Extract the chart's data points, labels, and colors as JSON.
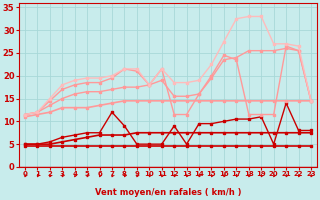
{
  "title": "",
  "xlabel": "Vent moyen/en rafales ( km/h )",
  "ylabel": "",
  "bg_color": "#c8ecec",
  "grid_color": "#a8d8d8",
  "text_color": "#cc0000",
  "xlim": [
    -0.5,
    23.5
  ],
  "ylim": [
    0,
    36
  ],
  "yticks": [
    0,
    5,
    10,
    15,
    20,
    25,
    30,
    35
  ],
  "xticks": [
    0,
    1,
    2,
    3,
    4,
    5,
    6,
    7,
    8,
    9,
    10,
    11,
    12,
    13,
    14,
    15,
    16,
    17,
    18,
    19,
    20,
    21,
    22,
    23
  ],
  "series": [
    {
      "x": [
        0,
        1,
        2,
        3,
        4,
        5,
        6,
        7,
        8,
        9,
        10,
        11,
        12,
        13,
        14,
        15,
        16,
        17,
        18,
        19,
        20,
        21,
        22,
        23
      ],
      "y": [
        4.5,
        4.5,
        4.5,
        4.5,
        4.5,
        4.5,
        4.5,
        4.5,
        4.5,
        4.5,
        4.5,
        4.5,
        4.5,
        4.5,
        4.5,
        4.5,
        4.5,
        4.5,
        4.5,
        4.5,
        4.5,
        4.5,
        4.5,
        4.5
      ],
      "color": "#cc0000",
      "lw": 1.2,
      "marker": "s",
      "ms": 2.0
    },
    {
      "x": [
        0,
        1,
        2,
        3,
        4,
        5,
        6,
        7,
        8,
        9,
        10,
        11,
        12,
        13,
        14,
        15,
        16,
        17,
        18,
        19,
        20,
        21,
        22,
        23
      ],
      "y": [
        5.0,
        5.0,
        5.0,
        5.5,
        6.0,
        6.5,
        7.0,
        7.0,
        7.0,
        7.5,
        7.5,
        7.5,
        7.5,
        7.5,
        7.5,
        7.5,
        7.5,
        7.5,
        7.5,
        7.5,
        7.5,
        7.5,
        7.5,
        7.5
      ],
      "color": "#cc0000",
      "lw": 1.2,
      "marker": "s",
      "ms": 2.0
    },
    {
      "x": [
        0,
        1,
        2,
        3,
        4,
        5,
        6,
        7,
        8,
        9,
        10,
        11,
        12,
        13,
        14,
        15,
        16,
        17,
        18,
        19,
        20,
        21,
        22,
        23
      ],
      "y": [
        5.0,
        5.0,
        5.5,
        6.5,
        7.0,
        7.5,
        7.5,
        12.0,
        9.0,
        5.0,
        5.0,
        5.0,
        9.0,
        5.0,
        9.5,
        9.5,
        10.0,
        10.5,
        10.5,
        11.0,
        5.0,
        14.0,
        8.0,
        8.0
      ],
      "color": "#cc0000",
      "lw": 1.0,
      "marker": "s",
      "ms": 2.0
    },
    {
      "x": [
        0,
        1,
        2,
        3,
        4,
        5,
        6,
        7,
        8,
        9,
        10,
        11,
        12,
        13,
        14,
        15,
        16,
        17,
        18,
        19,
        20,
        21,
        22,
        23
      ],
      "y": [
        11.0,
        11.5,
        12.0,
        13.0,
        13.0,
        13.0,
        13.5,
        14.0,
        14.5,
        14.5,
        14.5,
        14.5,
        14.5,
        14.5,
        14.5,
        14.5,
        14.5,
        14.5,
        14.5,
        14.5,
        14.5,
        14.5,
        14.5,
        14.5
      ],
      "color": "#ff9999",
      "lw": 1.2,
      "marker": "s",
      "ms": 2.0
    },
    {
      "x": [
        0,
        1,
        2,
        3,
        4,
        5,
        6,
        7,
        8,
        9,
        10,
        11,
        12,
        13,
        14,
        15,
        16,
        17,
        18,
        19,
        20,
        21,
        22,
        23
      ],
      "y": [
        11.5,
        12.0,
        13.5,
        15.0,
        16.0,
        16.5,
        16.5,
        17.0,
        17.5,
        17.5,
        18.0,
        19.0,
        15.5,
        15.5,
        16.0,
        19.5,
        23.5,
        24.0,
        25.5,
        25.5,
        25.5,
        26.0,
        25.5,
        14.5
      ],
      "color": "#ff9999",
      "lw": 1.0,
      "marker": "s",
      "ms": 2.0
    },
    {
      "x": [
        0,
        1,
        2,
        3,
        4,
        5,
        6,
        7,
        8,
        9,
        10,
        11,
        12,
        13,
        14,
        15,
        16,
        17,
        18,
        19,
        20,
        21,
        22,
        23
      ],
      "y": [
        11.5,
        12.0,
        14.5,
        17.0,
        18.0,
        18.5,
        18.5,
        19.5,
        21.5,
        21.0,
        18.0,
        21.5,
        11.5,
        11.5,
        16.0,
        20.0,
        24.5,
        23.5,
        11.5,
        11.5,
        11.5,
        26.5,
        25.5,
        14.5
      ],
      "color": "#ff9999",
      "lw": 1.0,
      "marker": "s",
      "ms": 2.0
    },
    {
      "x": [
        0,
        1,
        2,
        3,
        4,
        5,
        6,
        7,
        8,
        9,
        10,
        11,
        12,
        13,
        14,
        15,
        16,
        17,
        18,
        19,
        20,
        21,
        22,
        23
      ],
      "y": [
        11.5,
        12.0,
        15.0,
        18.0,
        19.0,
        19.5,
        19.5,
        20.0,
        21.5,
        21.5,
        18.0,
        21.5,
        18.5,
        18.5,
        19.0,
        22.5,
        27.5,
        32.5,
        33.0,
        33.0,
        27.0,
        27.0,
        26.5,
        14.5
      ],
      "color": "#ffbbbb",
      "lw": 1.0,
      "marker": "s",
      "ms": 1.5
    }
  ],
  "arrow_color": "#cc0000",
  "spine_color": "#cc0000"
}
